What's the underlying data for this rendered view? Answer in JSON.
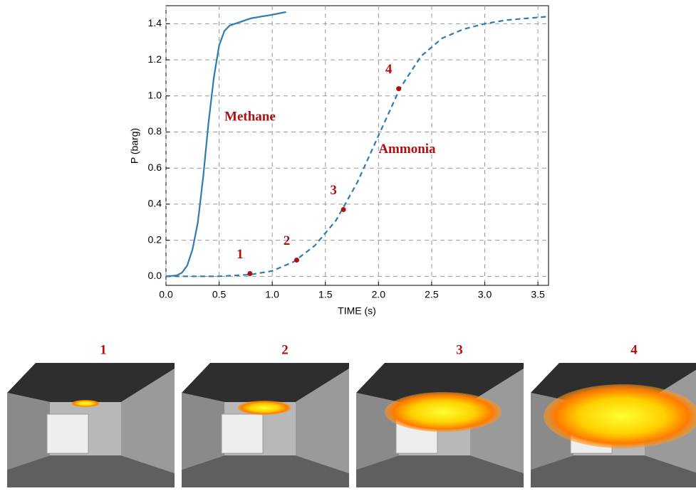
{
  "chart_data": {
    "type": "line",
    "xlabel": "TIME (s)",
    "ylabel": "P (barg)",
    "xlim": [
      0,
      3.6
    ],
    "ylim": [
      -0.05,
      1.5
    ],
    "xticks": [
      {
        "value": 0,
        "label": "0.0"
      },
      0.5,
      {
        "value": 1,
        "label": "1.0"
      },
      1.5,
      {
        "value": 2,
        "label": "2.0"
      },
      2.5,
      {
        "value": 3,
        "label": "3.0"
      },
      3.5
    ],
    "yticks": [
      {
        "value": 0,
        "label": "0.0"
      },
      0.2,
      0.4,
      0.6,
      0.8,
      {
        "value": 1,
        "label": "1.0"
      },
      1.2,
      1.4
    ],
    "grid": true,
    "series": [
      {
        "name": "Methane",
        "color": "#2e7bb4",
        "dashed": false,
        "x": [
          0,
          0.1,
          0.15,
          0.2,
          0.25,
          0.3,
          0.35,
          0.4,
          0.45,
          0.5,
          0.55,
          0.6,
          0.7,
          0.8,
          0.9,
          1.0,
          1.13
        ],
        "values": [
          0,
          0.005,
          0.02,
          0.06,
          0.15,
          0.3,
          0.55,
          0.85,
          1.1,
          1.28,
          1.36,
          1.39,
          1.41,
          1.43,
          1.44,
          1.45,
          1.465
        ]
      },
      {
        "name": "Ammonia",
        "color": "#2e7bb4",
        "dashed": true,
        "x": [
          0,
          0.5,
          0.8,
          1.0,
          1.2,
          1.4,
          1.6,
          1.8,
          2.0,
          2.2,
          2.4,
          2.6,
          2.8,
          3.0,
          3.2,
          3.4,
          3.6
        ],
        "values": [
          0,
          0,
          0.01,
          0.03,
          0.08,
          0.17,
          0.31,
          0.52,
          0.78,
          1.04,
          1.22,
          1.32,
          1.37,
          1.4,
          1.42,
          1.43,
          1.44
        ]
      }
    ],
    "markers": {
      "color": "#b00f0f",
      "x": [
        0.79,
        1.23,
        1.67,
        2.19
      ],
      "values": [
        0.015,
        0.09,
        0.37,
        1.04
      ],
      "labels": [
        "1",
        "2",
        "3",
        "4"
      ]
    }
  },
  "panels": [
    "1",
    "2",
    "3",
    "4"
  ]
}
